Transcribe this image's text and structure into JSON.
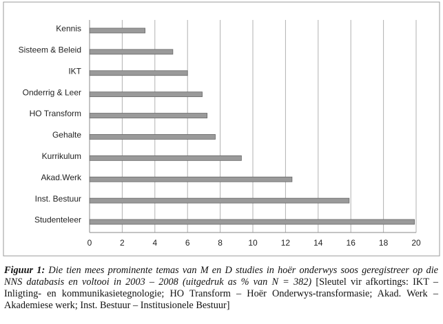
{
  "chart_data": {
    "type": "barh",
    "categories": [
      "Kennis",
      "Sisteem & Beleid",
      "IKT",
      "Onderrig & Leer",
      "HO Transform",
      "Gehalte",
      "Kurrikulum",
      "Akad.Werk",
      "Inst. Bestuur",
      "Studenteleer"
    ],
    "values": [
      3.4,
      5.1,
      6.0,
      6.9,
      7.2,
      7.7,
      9.3,
      12.4,
      15.9,
      19.9
    ],
    "color": "#9a9a9a",
    "xlim": [
      0,
      20
    ],
    "xticks": [
      0,
      2,
      4,
      6,
      8,
      10,
      12,
      14,
      16,
      18,
      20
    ],
    "grid": true
  },
  "caption": {
    "label": "Figuur 1:",
    "italic_text": "Die tien mees prominente temas van M en D studies in hoër onderwys soos geregistreer op die NNS databasis en voltooi in 2003 – 2008 (uitgedruk as % van N = 382)",
    "key_text": "[Sleutel vir afkortings: IKT – Inligting- en kommunikasietegnologie; HO Transform – Hoër Onderwys-transformasie; Akad. Werk – Akademiese werk; Inst. Bestuur – Institusionele Bestuur]"
  }
}
